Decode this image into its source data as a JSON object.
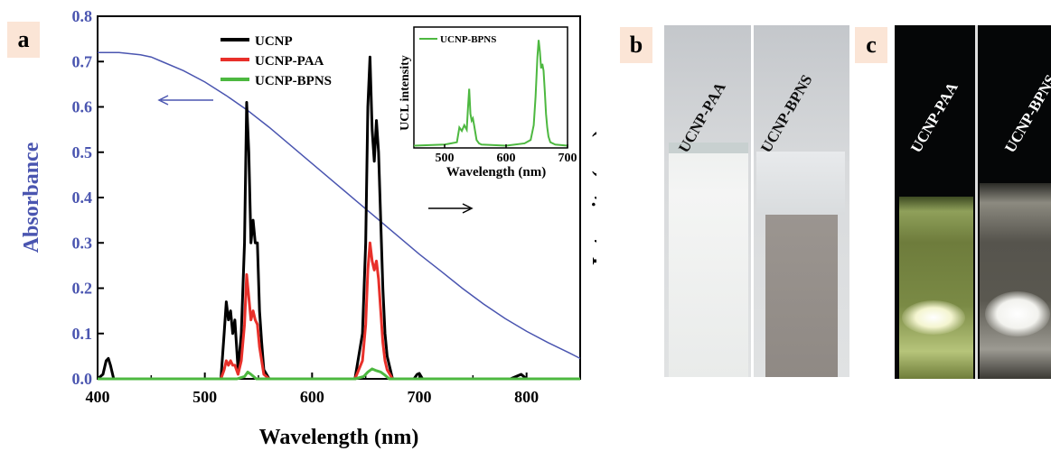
{
  "panels": {
    "a": {
      "letter": "a"
    },
    "b": {
      "letter": "b",
      "vials": [
        "UCNP-PAA",
        "UCNP-BPNS"
      ]
    },
    "c": {
      "letter": "c",
      "vials": [
        "UCNP-PAA",
        "UCNP-BPNS"
      ]
    }
  },
  "chart_data": {
    "type": "line",
    "xlabel": "Wavelength (nm)",
    "ylabel_left": "Absorbance",
    "ylabel_right": "Intensity (a.u.)",
    "xlim": [
      400,
      850
    ],
    "ylim": [
      0,
      0.8
    ],
    "x_ticks": [
      400,
      500,
      600,
      700,
      800
    ],
    "y_ticks": [
      "0.0",
      "0.1",
      "0.2",
      "0.3",
      "0.4",
      "0.5",
      "0.6",
      "0.7",
      "0.8"
    ],
    "colors": {
      "absorbance": "#4a55b0",
      "UCNP": "#000000",
      "UCNP-PAA": "#e8302a",
      "UCNP-BPNS": "#4db840"
    },
    "absorbance": {
      "x": [
        400,
        420,
        440,
        450,
        460,
        480,
        500,
        520,
        540,
        560,
        580,
        600,
        620,
        640,
        660,
        680,
        700,
        720,
        740,
        760,
        780,
        800,
        820,
        840,
        850
      ],
      "y": [
        0.72,
        0.72,
        0.715,
        0.71,
        0.7,
        0.68,
        0.655,
        0.625,
        0.592,
        0.555,
        0.515,
        0.475,
        0.435,
        0.395,
        0.355,
        0.315,
        0.275,
        0.238,
        0.2,
        0.165,
        0.133,
        0.105,
        0.08,
        0.057,
        0.045
      ]
    },
    "series": [
      {
        "name": "UCNP",
        "x": [
          400,
          405,
          408,
          410,
          412,
          415,
          500,
          515,
          518,
          520,
          522,
          524,
          526,
          528,
          531,
          534,
          537,
          539,
          541,
          543,
          545,
          547,
          549,
          551,
          553,
          555,
          560,
          640,
          647,
          650,
          652,
          654,
          656,
          658,
          660,
          662,
          664,
          666,
          668,
          670,
          675,
          695,
          698,
          700,
          703,
          785,
          795,
          800,
          850
        ],
        "y": [
          0,
          0.01,
          0.04,
          0.045,
          0.03,
          0,
          0,
          0,
          0.1,
          0.17,
          0.13,
          0.15,
          0.1,
          0.13,
          0.02,
          0.1,
          0.3,
          0.61,
          0.5,
          0.3,
          0.35,
          0.3,
          0.3,
          0.15,
          0.08,
          0.02,
          0,
          0,
          0.1,
          0.3,
          0.6,
          0.71,
          0.55,
          0.48,
          0.57,
          0.5,
          0.35,
          0.2,
          0.1,
          0.05,
          0,
          0,
          0.01,
          0.012,
          0,
          0,
          0.01,
          0,
          0
        ]
      },
      {
        "name": "UCNP-PAA",
        "x": [
          500,
          515,
          518,
          520,
          522,
          524,
          526,
          528,
          531,
          534,
          537,
          539,
          541,
          543,
          545,
          547,
          549,
          551,
          553,
          555,
          560,
          640,
          647,
          650,
          652,
          654,
          656,
          658,
          660,
          662,
          664,
          666,
          668,
          670,
          675,
          850
        ],
        "y": [
          0,
          0,
          0.02,
          0.04,
          0.03,
          0.04,
          0.03,
          0.03,
          0.01,
          0.04,
          0.12,
          0.23,
          0.18,
          0.13,
          0.15,
          0.13,
          0.12,
          0.07,
          0.04,
          0.01,
          0,
          0,
          0.04,
          0.12,
          0.24,
          0.3,
          0.26,
          0.24,
          0.26,
          0.22,
          0.15,
          0.08,
          0.04,
          0.02,
          0,
          0
        ]
      },
      {
        "name": "UCNP-BPNS",
        "x": [
          400,
          530,
          537,
          540,
          543,
          548,
          640,
          648,
          652,
          656,
          660,
          664,
          668,
          672,
          850
        ],
        "y": [
          0,
          0,
          0.005,
          0.015,
          0.01,
          0,
          0,
          0.005,
          0.015,
          0.022,
          0.018,
          0.015,
          0.008,
          0,
          0
        ]
      }
    ],
    "inset": {
      "ylabel": "UCL intensity",
      "xlabel": "Wavelength (nm)",
      "xlim": [
        450,
        700
      ],
      "x_ticks": [
        500,
        600,
        700
      ],
      "legend": "UCNP-BPNS",
      "x": [
        450,
        500,
        510,
        520,
        524,
        528,
        532,
        536,
        538,
        540,
        542,
        544,
        546,
        548,
        552,
        556,
        560,
        600,
        630,
        640,
        645,
        648,
        651,
        653,
        655,
        657,
        659,
        661,
        663,
        665,
        667,
        669,
        672,
        680,
        700
      ],
      "y": [
        0.02,
        0.03,
        0.04,
        0.05,
        0.18,
        0.15,
        0.2,
        0.16,
        0.35,
        0.52,
        0.3,
        0.24,
        0.26,
        0.2,
        0.07,
        0.04,
        0.03,
        0.02,
        0.04,
        0.07,
        0.2,
        0.45,
        0.8,
        0.95,
        0.85,
        0.7,
        0.74,
        0.68,
        0.5,
        0.3,
        0.18,
        0.1,
        0.05,
        0.03,
        0.02
      ]
    }
  }
}
